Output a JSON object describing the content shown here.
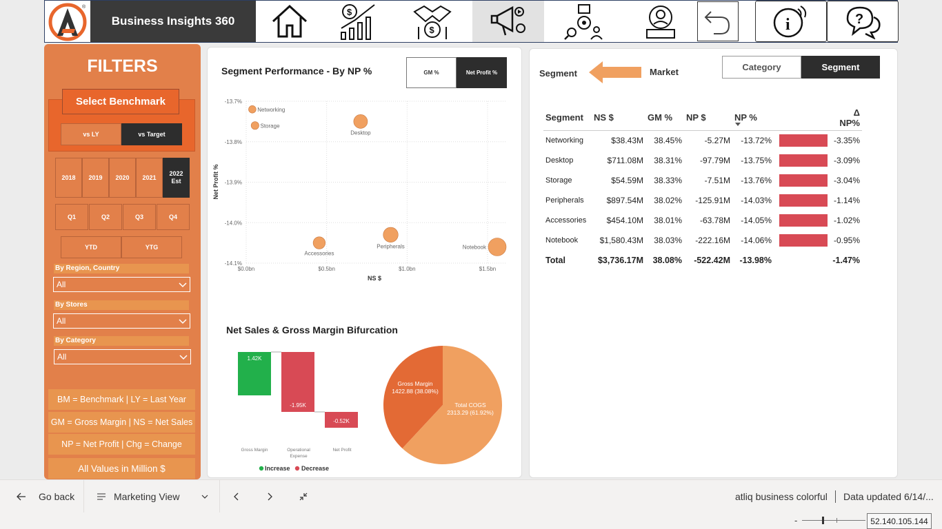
{
  "header": {
    "title": "Business Insights 360",
    "nav_icons": [
      "home-icon",
      "finance-icon",
      "sales-icon",
      "marketing-icon",
      "supply-chain-icon",
      "executive-icon",
      "back-icon",
      "info-icon",
      "help-icon"
    ]
  },
  "filters": {
    "title": "FILTERS",
    "benchmark_title": "Select Benchmark",
    "benchmark_options": [
      "vs LY",
      "vs Target"
    ],
    "benchmark_selected": "vs Target",
    "years": [
      "2018",
      "2019",
      "2020",
      "2021",
      "2022 Est"
    ],
    "quarters": [
      "Q1",
      "Q2",
      "Q3",
      "Q4"
    ],
    "ytd": [
      "YTD",
      "YTG"
    ],
    "region_label": "By Region, Country",
    "region_value": "All",
    "stores_label": "By Stores",
    "stores_value": "All",
    "category_label": "By Category",
    "category_value": "All",
    "legend": [
      "BM = Benchmark | LY = Last Year",
      "GM = Gross Margin | NS = Net Sales",
      "NP = Net Profit | Chg = Change",
      "All Values in Million $"
    ]
  },
  "scatter": {
    "title": "Segment Performance - By NP %",
    "toggle_gm": "GM %",
    "toggle_np": "Net Profit %",
    "xlabel": "NS $",
    "ylabel": "Net Profit %",
    "x_ticks": [
      "$0.0bn",
      "$0.5bn",
      "$1.0bn",
      "$1.5bn"
    ],
    "y_ticks": [
      "-13.7%",
      "-13.8%",
      "-13.9%",
      "-14.0%",
      "-14.1%"
    ]
  },
  "waterfall": {
    "title": "Net Sales & Gross Margin Bifurcation",
    "bars": [
      {
        "label": "Gross Margin",
        "value": "1.42K"
      },
      {
        "label": "Operational Expense",
        "value": "-1.95K"
      },
      {
        "label": "Net Profit",
        "value": "-0.52K"
      }
    ],
    "legend_increase": "Increase",
    "legend_decrease": "Decrease",
    "color_increase": "#22b04b",
    "color_decrease": "#d84a55"
  },
  "pie": {
    "slices": [
      {
        "label": "Gross Margin",
        "value_text": "1422.88 (38.08%)",
        "value": 1422.88,
        "color": "#e36a35"
      },
      {
        "label": "Total COGS",
        "value_text": "2313.29 (61.92%)",
        "value": 2313.29,
        "color": "#f0a060"
      }
    ]
  },
  "right": {
    "crumb_left": "Segment",
    "crumb_right": "Market",
    "tab_category": "Category",
    "tab_segment": "Segment",
    "columns": [
      "Segment",
      "NS $",
      "GM %",
      "NP $",
      "NP %",
      "",
      "Δ NP%"
    ],
    "rows": [
      [
        "Networking",
        "$38.43M",
        "38.45%",
        "-5.27M",
        "-13.72%",
        "-3.35%"
      ],
      [
        "Desktop",
        "$711.08M",
        "38.31%",
        "-97.79M",
        "-13.75%",
        "-3.09%"
      ],
      [
        "Storage",
        "$54.59M",
        "38.33%",
        "-7.51M",
        "-13.76%",
        "-3.04%"
      ],
      [
        "Peripherals",
        "$897.54M",
        "38.02%",
        "-125.91M",
        "-14.03%",
        "-1.14%"
      ],
      [
        "Accessories",
        "$454.10M",
        "38.01%",
        "-63.78M",
        "-14.05%",
        "-1.02%"
      ],
      [
        "Notebook",
        "$1,580.43M",
        "38.03%",
        "-222.16M",
        "-14.06%",
        "-0.95%"
      ]
    ],
    "total": [
      "Total",
      "$3,736.17M",
      "38.08%",
      "-522.42M",
      "-13.98%",
      "-1.47%"
    ]
  },
  "bottom": {
    "go_back": "Go back",
    "page": "Marketing View",
    "report_name": "atliq business colorful",
    "updated": "Data updated 6/14/...",
    "ip": "52.140.105.144"
  },
  "chart_data": {
    "type": "scatter",
    "title": "Segment Performance - By NP %",
    "xlabel": "NS $",
    "ylabel": "Net Profit %",
    "xlim": [
      0,
      1.58
    ],
    "ylim": [
      -14.1,
      -13.7
    ],
    "points": [
      {
        "label": "Networking",
        "x": 0.038,
        "y": -13.72
      },
      {
        "label": "Storage",
        "x": 0.055,
        "y": -13.76
      },
      {
        "label": "Desktop",
        "x": 0.711,
        "y": -13.75
      },
      {
        "label": "Accessories",
        "x": 0.454,
        "y": -14.05
      },
      {
        "label": "Peripherals",
        "x": 0.898,
        "y": -14.03
      },
      {
        "label": "Notebook",
        "x": 1.58,
        "y": -14.06
      }
    ]
  }
}
